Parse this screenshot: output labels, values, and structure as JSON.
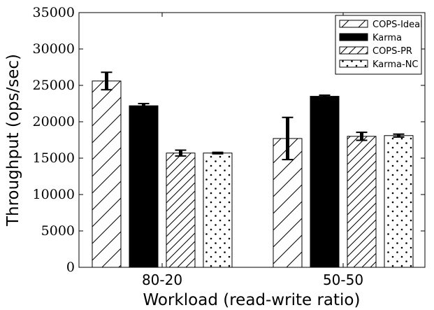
{
  "chart_data": {
    "type": "bar",
    "title": "",
    "xlabel": "Workload (read-write ratio)",
    "ylabel": "Throughput (ops/sec)",
    "ylim": [
      0,
      35000
    ],
    "yticks": [
      0,
      5000,
      10000,
      15000,
      20000,
      25000,
      30000,
      35000
    ],
    "categories": [
      "80-20",
      "50-50"
    ],
    "legend_position": "top-right",
    "grid": false,
    "series": [
      {
        "name": "COPS-Ideal",
        "pattern": "sparse-diagonal-hatch",
        "values": [
          25600,
          17700
        ],
        "errors": [
          1200,
          2900
        ]
      },
      {
        "name": "Karma",
        "pattern": "solid-black",
        "values": [
          22200,
          23500
        ],
        "errors": [
          300,
          150
        ]
      },
      {
        "name": "COPS-PR",
        "pattern": "dense-diagonal-hatch",
        "values": [
          15700,
          18000
        ],
        "errors": [
          400,
          550
        ]
      },
      {
        "name": "Karma-NC",
        "pattern": "dots",
        "values": [
          15700,
          18100
        ],
        "errors": [
          100,
          200
        ]
      }
    ]
  }
}
